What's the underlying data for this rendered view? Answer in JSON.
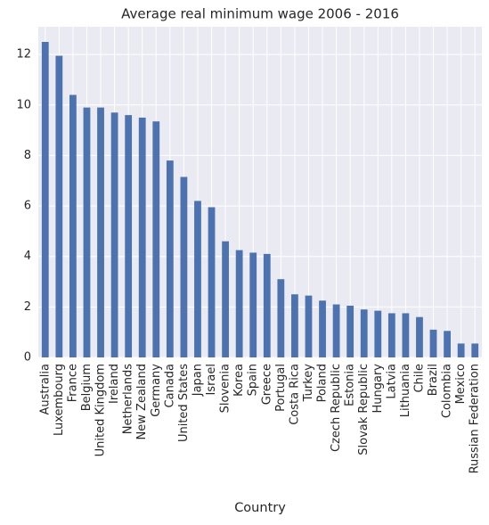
{
  "chart_data": {
    "type": "bar",
    "title": "Average real minimum wage 2006 - 2016",
    "xlabel": "Country",
    "categories": [
      "Australia",
      "Luxembourg",
      "France",
      "Belgium",
      "United Kingdom",
      "Ireland",
      "Netherlands",
      "New Zealand",
      "Germany",
      "Canada",
      "United States",
      "Japan",
      "Israel",
      "Slovenia",
      "Korea",
      "Spain",
      "Greece",
      "Portugal",
      "Costa Rica",
      "Turkey",
      "Poland",
      "Czech Republic",
      "Estonia",
      "Slovak Republic",
      "Hungary",
      "Latvia",
      "Lithuania",
      "Chile",
      "Brazil",
      "Colombia",
      "Mexico",
      "Russian Federation"
    ],
    "values": [
      12.5,
      11.95,
      10.4,
      9.9,
      9.9,
      9.7,
      9.6,
      9.5,
      9.35,
      7.8,
      7.15,
      6.2,
      5.95,
      4.6,
      4.25,
      4.15,
      4.1,
      3.1,
      2.5,
      2.45,
      2.25,
      2.1,
      2.05,
      1.9,
      1.85,
      1.75,
      1.75,
      1.6,
      1.1,
      1.05,
      0.55,
      0.55
    ],
    "color": "#4c72b0",
    "ylim": [
      0,
      13.1
    ],
    "yticks": [
      0,
      2,
      4,
      6,
      8,
      10,
      12
    ],
    "grid": true
  }
}
